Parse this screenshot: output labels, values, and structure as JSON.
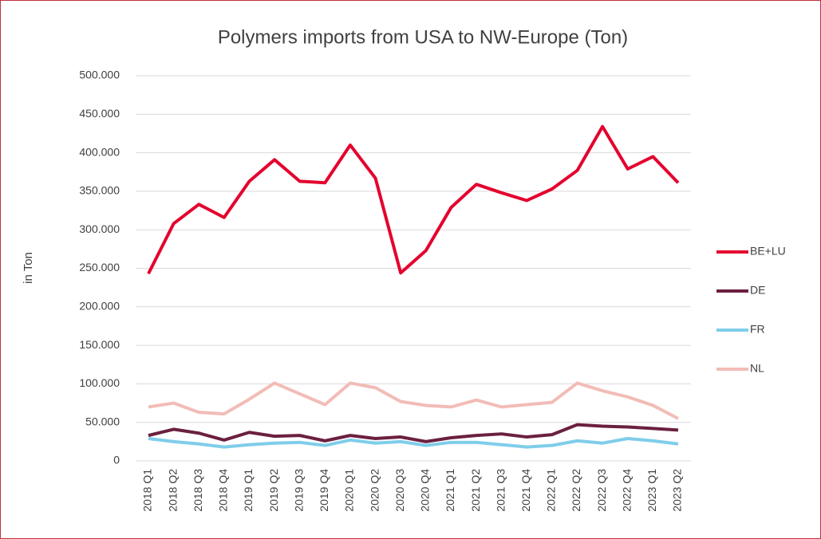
{
  "chart_data": {
    "type": "line",
    "title": "Polymers imports from USA to NW-Europe (Ton)",
    "y_label": "in Ton",
    "categories": [
      "2018 Q1",
      "2018 Q2",
      "2018 Q3",
      "2018 Q4",
      "2019 Q1",
      "2019 Q2",
      "2019 Q3",
      "2019 Q4",
      "2020 Q1",
      "2020 Q2",
      "2020 Q3",
      "2020 Q4",
      "2021 Q1",
      "2021 Q2",
      "2021 Q3",
      "2021 Q4",
      "2022 Q1",
      "2022 Q2",
      "2022 Q3",
      "2022 Q4",
      "2023 Q1",
      "2023 Q2"
    ],
    "series": [
      {
        "name": "BE+LU",
        "color": "#e4032e",
        "values": [
          243000,
          308000,
          333000,
          316000,
          363000,
          391000,
          363000,
          361000,
          410000,
          367000,
          244000,
          273000,
          329000,
          359000,
          348000,
          338000,
          353000,
          377000,
          434000,
          379000,
          395000,
          361000
        ]
      },
      {
        "name": "DE",
        "color": "#6b2040",
        "values": [
          33000,
          41000,
          36000,
          27000,
          37000,
          32000,
          33000,
          26000,
          33000,
          29000,
          31000,
          25000,
          30000,
          33000,
          35000,
          31000,
          34000,
          47000,
          45000,
          44000,
          42000,
          40000
        ]
      },
      {
        "name": "FR",
        "color": "#7fcdea",
        "values": [
          29000,
          25000,
          22000,
          18000,
          21000,
          23000,
          24000,
          20000,
          27000,
          23000,
          25000,
          20000,
          24000,
          24000,
          21000,
          18000,
          20000,
          26000,
          23000,
          29000,
          26000,
          22000
        ]
      },
      {
        "name": "NL",
        "color": "#f2bcb6",
        "values": [
          70000,
          75000,
          63000,
          61000,
          80000,
          101000,
          87000,
          73000,
          101000,
          95000,
          77000,
          72000,
          70000,
          79000,
          70000,
          73000,
          76000,
          101000,
          91000,
          83000,
          72000,
          55000
        ]
      }
    ],
    "ylim": [
      0,
      500000
    ],
    "yticks": [
      0,
      {
        "value": 50000,
        "label": "50.000"
      },
      {
        "value": 100000,
        "label": "100.000"
      },
      {
        "value": 150000,
        "label": "150.000"
      },
      {
        "value": 200000,
        "label": "200.000"
      },
      {
        "value": 250000,
        "label": "250.000"
      },
      {
        "value": 300000,
        "label": "300.000"
      },
      {
        "value": 350000,
        "label": "350.000"
      },
      {
        "value": 400000,
        "label": "400.000"
      },
      {
        "value": 450000,
        "label": "450.000"
      },
      {
        "value": 500000,
        "label": "500.000"
      }
    ],
    "grid": true,
    "legend": "right"
  }
}
